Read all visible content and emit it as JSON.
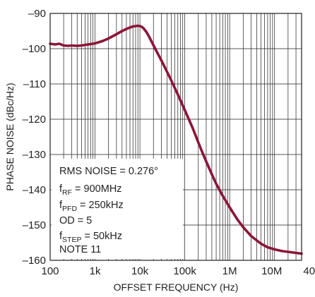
{
  "chart_data": {
    "type": "line",
    "xscale": "log",
    "xlabel": "OFFSET FREQUENCY (Hz)",
    "ylabel": "PHASE NOISE (dBc/Hz)",
    "xlim": [
      100,
      40000000
    ],
    "ylim": [
      -160,
      -90
    ],
    "grid": true,
    "x_ticks": [
      {
        "value": 100,
        "label": "100"
      },
      {
        "value": 1000,
        "label": "1k"
      },
      {
        "value": 10000,
        "label": "10k"
      },
      {
        "value": 100000,
        "label": "100k"
      },
      {
        "value": 1000000,
        "label": "1M"
      },
      {
        "value": 10000000,
        "label": "10M"
      },
      {
        "value": 40000000,
        "label": "40M"
      }
    ],
    "y_ticks": [
      {
        "value": -90,
        "label": "–90"
      },
      {
        "value": -100,
        "label": "–100"
      },
      {
        "value": -110,
        "label": "–110"
      },
      {
        "value": -120,
        "label": "–120"
      },
      {
        "value": -130,
        "label": "–130"
      },
      {
        "value": -140,
        "label": "–140"
      },
      {
        "value": -150,
        "label": "–150"
      },
      {
        "value": -160,
        "label": "–160"
      }
    ],
    "annotation": [
      {
        "base": "RMS NOISE = 0.276°",
        "sub": "",
        "tail": ""
      },
      {
        "base": "f",
        "sub": "RF",
        "tail": " = 900MHz"
      },
      {
        "base": "f",
        "sub": "PFD",
        "tail": " = 250kHz"
      },
      {
        "base": "OD = 5",
        "sub": "",
        "tail": ""
      },
      {
        "base": "f",
        "sub": "STEP",
        "tail": " = 50kHz"
      },
      {
        "base": "NOTE 11",
        "sub": "",
        "tail": ""
      }
    ],
    "series": [
      {
        "color": "#8b1538",
        "x": [
          100,
          130,
          160,
          200,
          250,
          300,
          400,
          500,
          700,
          1000,
          1500,
          2000,
          3000,
          4000,
          5000,
          6000,
          7000,
          8000,
          9000,
          10000,
          11000,
          12000,
          14000,
          16000,
          20000,
          25000,
          30000,
          40000,
          50000,
          70000,
          100000,
          150000,
          200000,
          250000,
          300000,
          400000,
          500000,
          700000,
          1000000,
          1500000,
          2000000,
          3000000,
          5000000,
          7000000,
          10000000,
          15000000,
          20000000,
          30000000,
          40000000
        ],
        "y": [
          -98.6,
          -98.8,
          -98.6,
          -99.1,
          -99.2,
          -99.1,
          -99.2,
          -99.1,
          -98.8,
          -98.5,
          -97.8,
          -97.1,
          -95.9,
          -95.0,
          -94.4,
          -94.0,
          -93.7,
          -93.6,
          -93.5,
          -93.6,
          -93.8,
          -94.2,
          -95.3,
          -96.6,
          -99.0,
          -101.4,
          -103.3,
          -106.5,
          -109.0,
          -113.0,
          -117.4,
          -122.5,
          -126.6,
          -129.6,
          -132.0,
          -135.6,
          -138.3,
          -141.7,
          -145.0,
          -148.5,
          -150.6,
          -153.1,
          -155.3,
          -156.3,
          -156.9,
          -157.4,
          -157.6,
          -157.9,
          -158.1
        ]
      }
    ]
  }
}
